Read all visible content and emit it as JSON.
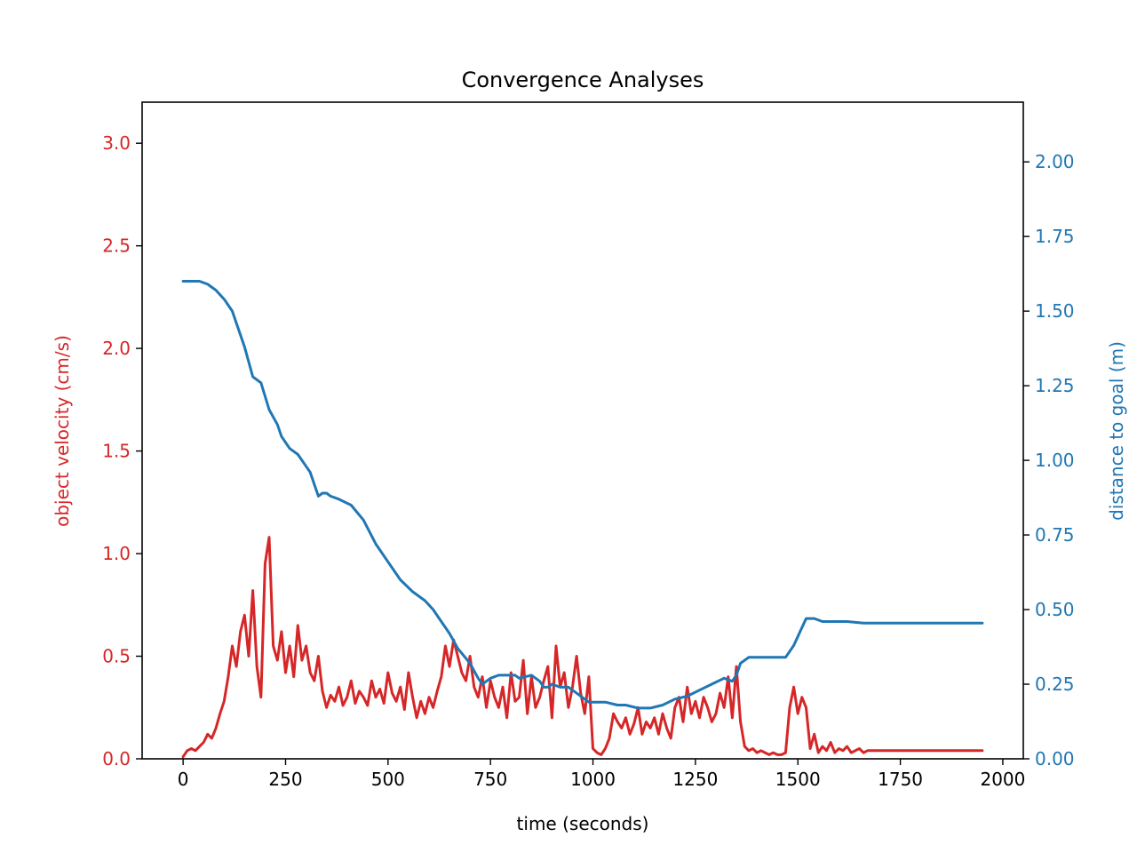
{
  "chart_data": {
    "type": "line",
    "title": "Convergence Analyses",
    "xlabel": "time (seconds)",
    "xlim": [
      -100,
      2050
    ],
    "x_ticks": [
      0,
      250,
      500,
      750,
      1000,
      1250,
      1500,
      1750,
      2000
    ],
    "x_tick_labels": [
      "0",
      "250",
      "500",
      "750",
      "1000",
      "1250",
      "1500",
      "1750",
      "2000"
    ],
    "left_axis": {
      "label": "object velocity (cm/s)",
      "color": "#d62728",
      "ylim": [
        0,
        3.2
      ],
      "ticks": [
        0,
        0.5,
        1.0,
        1.5,
        2.0,
        2.5,
        3.0
      ],
      "tick_labels": [
        "0.0",
        "0.5",
        "1.0",
        "1.5",
        "2.0",
        "2.5",
        "3.0"
      ]
    },
    "right_axis": {
      "label": "distance to goal (m)",
      "color": "#1f77b4",
      "ylim": [
        0,
        2.2
      ],
      "ticks": [
        0,
        0.25,
        0.5,
        0.75,
        1.0,
        1.25,
        1.5,
        1.75,
        2.0
      ],
      "tick_labels": [
        "0.00",
        "0.25",
        "0.50",
        "0.75",
        "1.00",
        "1.25",
        "1.50",
        "1.75",
        "2.00"
      ]
    },
    "series": [
      {
        "axis": "left",
        "color": "#d62728",
        "x": [
          0,
          10,
          20,
          30,
          40,
          50,
          60,
          70,
          80,
          90,
          100,
          110,
          120,
          130,
          140,
          150,
          160,
          170,
          180,
          190,
          200,
          210,
          220,
          230,
          240,
          250,
          260,
          270,
          280,
          290,
          300,
          310,
          320,
          330,
          340,
          350,
          360,
          370,
          380,
          390,
          400,
          410,
          420,
          430,
          440,
          450,
          460,
          470,
          480,
          490,
          500,
          510,
          520,
          530,
          540,
          550,
          560,
          570,
          580,
          590,
          600,
          610,
          620,
          630,
          640,
          650,
          660,
          670,
          680,
          690,
          700,
          710,
          720,
          730,
          740,
          750,
          760,
          770,
          780,
          790,
          800,
          810,
          820,
          830,
          840,
          850,
          860,
          870,
          880,
          890,
          900,
          910,
          920,
          930,
          940,
          950,
          960,
          970,
          980,
          990,
          1000,
          1010,
          1020,
          1030,
          1040,
          1050,
          1060,
          1070,
          1080,
          1090,
          1100,
          1110,
          1120,
          1130,
          1140,
          1150,
          1160,
          1170,
          1180,
          1190,
          1200,
          1210,
          1220,
          1230,
          1240,
          1250,
          1260,
          1270,
          1280,
          1290,
          1300,
          1310,
          1320,
          1330,
          1340,
          1350,
          1360,
          1370,
          1380,
          1390,
          1400,
          1410,
          1420,
          1430,
          1440,
          1450,
          1460,
          1470,
          1480,
          1490,
          1500,
          1510,
          1520,
          1530,
          1540,
          1550,
          1560,
          1570,
          1580,
          1590,
          1600,
          1610,
          1620,
          1630,
          1640,
          1650,
          1660,
          1670,
          1950
        ],
        "y": [
          0.01,
          0.04,
          0.05,
          0.04,
          0.06,
          0.08,
          0.12,
          0.1,
          0.15,
          0.22,
          0.28,
          0.4,
          0.55,
          0.45,
          0.62,
          0.7,
          0.5,
          0.82,
          0.45,
          0.3,
          0.95,
          1.08,
          0.55,
          0.48,
          0.62,
          0.42,
          0.55,
          0.4,
          0.65,
          0.48,
          0.55,
          0.42,
          0.38,
          0.5,
          0.33,
          0.25,
          0.31,
          0.28,
          0.35,
          0.26,
          0.3,
          0.38,
          0.27,
          0.33,
          0.3,
          0.26,
          0.38,
          0.3,
          0.34,
          0.27,
          0.42,
          0.32,
          0.28,
          0.35,
          0.24,
          0.42,
          0.3,
          0.2,
          0.28,
          0.22,
          0.3,
          0.25,
          0.33,
          0.4,
          0.55,
          0.45,
          0.58,
          0.5,
          0.42,
          0.38,
          0.5,
          0.35,
          0.3,
          0.4,
          0.25,
          0.38,
          0.3,
          0.25,
          0.35,
          0.2,
          0.42,
          0.28,
          0.3,
          0.48,
          0.22,
          0.4,
          0.25,
          0.3,
          0.38,
          0.45,
          0.2,
          0.55,
          0.35,
          0.42,
          0.25,
          0.35,
          0.5,
          0.32,
          0.22,
          0.4,
          0.05,
          0.03,
          0.02,
          0.05,
          0.1,
          0.22,
          0.18,
          0.15,
          0.2,
          0.12,
          0.17,
          0.25,
          0.12,
          0.18,
          0.15,
          0.2,
          0.12,
          0.22,
          0.15,
          0.1,
          0.25,
          0.3,
          0.18,
          0.35,
          0.22,
          0.28,
          0.2,
          0.3,
          0.25,
          0.18,
          0.22,
          0.32,
          0.25,
          0.4,
          0.2,
          0.45,
          0.18,
          0.06,
          0.04,
          0.05,
          0.03,
          0.04,
          0.03,
          0.02,
          0.03,
          0.02,
          0.02,
          0.03,
          0.25,
          0.35,
          0.22,
          0.3,
          0.25,
          0.05,
          0.12,
          0.03,
          0.06,
          0.04,
          0.08,
          0.03,
          0.05,
          0.04,
          0.06,
          0.03,
          0.04,
          0.05,
          0.03,
          0.04,
          0.04
        ]
      },
      {
        "axis": "right",
        "color": "#1f77b4",
        "x": [
          0,
          40,
          60,
          80,
          100,
          120,
          130,
          140,
          150,
          170,
          190,
          210,
          230,
          240,
          260,
          280,
          300,
          310,
          320,
          330,
          340,
          350,
          360,
          380,
          410,
          440,
          470,
          500,
          530,
          560,
          590,
          610,
          630,
          650,
          670,
          700,
          720,
          730,
          750,
          770,
          790,
          810,
          820,
          850,
          870,
          880,
          890,
          900,
          920,
          940,
          950,
          960,
          990,
          1010,
          1030,
          1060,
          1080,
          1110,
          1140,
          1170,
          1200,
          1230,
          1260,
          1290,
          1320,
          1340,
          1350,
          1360,
          1380,
          1420,
          1470,
          1490,
          1520,
          1540,
          1560,
          1580,
          1620,
          1660,
          1700,
          1750,
          1800,
          1950
        ],
        "y": [
          1.6,
          1.6,
          1.59,
          1.57,
          1.54,
          1.5,
          1.46,
          1.42,
          1.38,
          1.28,
          1.26,
          1.17,
          1.12,
          1.08,
          1.04,
          1.02,
          0.98,
          0.96,
          0.92,
          0.88,
          0.89,
          0.89,
          0.88,
          0.87,
          0.85,
          0.8,
          0.72,
          0.66,
          0.6,
          0.56,
          0.53,
          0.5,
          0.46,
          0.42,
          0.37,
          0.32,
          0.27,
          0.25,
          0.27,
          0.28,
          0.28,
          0.28,
          0.27,
          0.28,
          0.26,
          0.24,
          0.24,
          0.25,
          0.24,
          0.24,
          0.23,
          0.22,
          0.19,
          0.19,
          0.19,
          0.18,
          0.18,
          0.17,
          0.17,
          0.18,
          0.2,
          0.21,
          0.23,
          0.25,
          0.27,
          0.26,
          0.28,
          0.32,
          0.34,
          0.34,
          0.34,
          0.38,
          0.47,
          0.47,
          0.46,
          0.46,
          0.46,
          0.455,
          0.455,
          0.455,
          0.455,
          0.455
        ]
      }
    ]
  }
}
